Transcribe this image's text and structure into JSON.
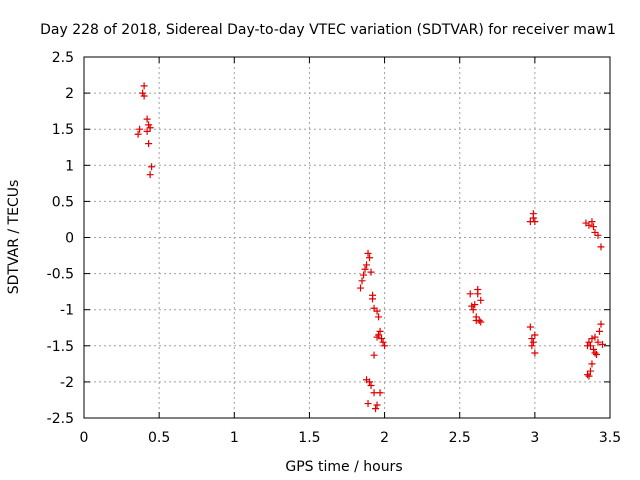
{
  "chart_data": {
    "type": "scatter",
    "title": "Day 228 of 2018, Sidereal Day-to-day VTEC variation (SDTVAR) for receiver maw1",
    "xlabel": "GPS time / hours",
    "ylabel": "SDTVAR / TECUs",
    "xlim": [
      0,
      3.5
    ],
    "ylim": [
      -2.5,
      2.5
    ],
    "grid": true,
    "marker": "+",
    "marker_color": "#e00000",
    "x_ticks": [
      0,
      0.5,
      1,
      1.5,
      2,
      2.5,
      3,
      3.5
    ],
    "x_tick_labels": [
      "0",
      "0.5",
      "1",
      "1.5",
      "2",
      "2.5",
      "3",
      "3.5"
    ],
    "y_ticks": [
      2.5,
      2,
      1.5,
      1,
      0.5,
      0,
      -0.5,
      -1,
      -1.5,
      -2,
      -2.5
    ],
    "y_tick_labels": [
      "2.5",
      "2",
      "1.5",
      "1",
      "0.5",
      "0",
      "-0.5",
      "-1",
      "-1.5",
      "-2",
      "-2.5"
    ],
    "series": [
      {
        "name": "SDTVAR",
        "points": [
          [
            0.36,
            1.43
          ],
          [
            0.37,
            1.5
          ],
          [
            0.39,
            2.0
          ],
          [
            0.4,
            2.1
          ],
          [
            0.4,
            1.96
          ],
          [
            0.42,
            1.64
          ],
          [
            0.42,
            1.47
          ],
          [
            0.43,
            1.56
          ],
          [
            0.43,
            1.3
          ],
          [
            0.44,
            1.52
          ],
          [
            0.44,
            0.87
          ],
          [
            0.45,
            0.98
          ],
          [
            1.84,
            -0.7
          ],
          [
            1.85,
            -0.6
          ],
          [
            1.86,
            -0.52
          ],
          [
            1.87,
            -0.44
          ],
          [
            1.88,
            -0.38
          ],
          [
            1.89,
            -0.22
          ],
          [
            1.9,
            -0.28
          ],
          [
            1.91,
            -0.48
          ],
          [
            1.88,
            -1.97
          ],
          [
            1.89,
            -2.3
          ],
          [
            1.9,
            -2.0
          ],
          [
            1.91,
            -2.05
          ],
          [
            1.92,
            -0.8
          ],
          [
            1.92,
            -0.85
          ],
          [
            1.93,
            -0.98
          ],
          [
            1.93,
            -2.15
          ],
          [
            1.93,
            -1.63
          ],
          [
            1.94,
            -2.37
          ],
          [
            1.95,
            -1.02
          ],
          [
            1.95,
            -1.38
          ],
          [
            1.95,
            -2.32
          ],
          [
            1.96,
            -1.35
          ],
          [
            1.96,
            -1.1
          ],
          [
            1.97,
            -2.15
          ],
          [
            1.97,
            -1.3
          ],
          [
            1.98,
            -1.4
          ],
          [
            1.99,
            -1.45
          ],
          [
            2.0,
            -1.5
          ],
          [
            2.57,
            -0.78
          ],
          [
            2.58,
            -0.95
          ],
          [
            2.59,
            -1.0
          ],
          [
            2.6,
            -0.93
          ],
          [
            2.61,
            -1.15
          ],
          [
            2.61,
            -1.1
          ],
          [
            2.62,
            -0.78
          ],
          [
            2.62,
            -0.72
          ],
          [
            2.63,
            -1.15
          ],
          [
            2.64,
            -0.87
          ],
          [
            2.64,
            -1.17
          ],
          [
            2.97,
            0.22
          ],
          [
            2.97,
            -1.24
          ],
          [
            2.98,
            -1.4
          ],
          [
            2.98,
            -1.5
          ],
          [
            2.99,
            0.27
          ],
          [
            2.99,
            0.33
          ],
          [
            2.99,
            -1.45
          ],
          [
            3.0,
            0.22
          ],
          [
            3.0,
            -1.35
          ],
          [
            3.0,
            -1.6
          ],
          [
            3.34,
            0.2
          ],
          [
            3.35,
            -1.5
          ],
          [
            3.35,
            -1.9
          ],
          [
            3.36,
            0.17
          ],
          [
            3.36,
            -1.45
          ],
          [
            3.36,
            -1.92
          ],
          [
            3.37,
            -1.5
          ],
          [
            3.37,
            -1.85
          ],
          [
            3.38,
            0.22
          ],
          [
            3.38,
            -1.4
          ],
          [
            3.38,
            -1.75
          ],
          [
            3.39,
            0.15
          ],
          [
            3.39,
            -1.55
          ],
          [
            3.4,
            0.07
          ],
          [
            3.4,
            -1.38
          ],
          [
            3.4,
            -1.6
          ],
          [
            3.41,
            -1.62
          ],
          [
            3.42,
            0.03
          ],
          [
            3.42,
            -1.45
          ],
          [
            3.43,
            -1.3
          ],
          [
            3.44,
            -0.13
          ],
          [
            3.44,
            -1.2
          ],
          [
            3.45,
            -1.48
          ]
        ]
      }
    ]
  }
}
